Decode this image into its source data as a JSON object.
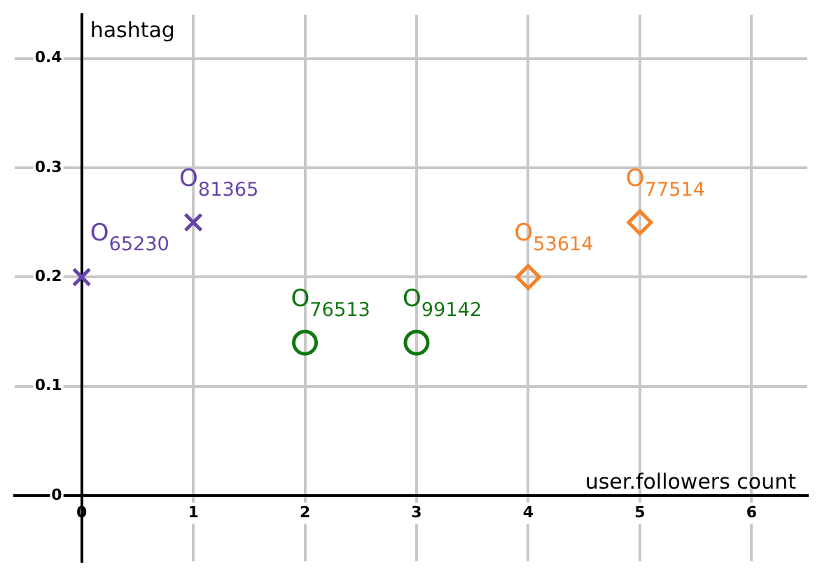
{
  "chart_data": {
    "type": "scatter",
    "xlabel": "user.followers count",
    "ylabel": "hashtag",
    "xlim": [
      -0.6,
      6.5
    ],
    "ylim": [
      -0.06,
      0.44
    ],
    "xticks": [
      0,
      1,
      2,
      3,
      4,
      5,
      6
    ],
    "yticks": [
      0,
      0.1,
      0.2,
      0.3,
      0.4
    ],
    "grid": true,
    "series": [
      {
        "color": "#6644aa",
        "marker": "cross",
        "x": [
          0,
          1
        ],
        "values": [
          0.2,
          0.25
        ]
      },
      {
        "color": "#117711",
        "marker": "circle",
        "x": [
          2,
          3
        ],
        "values": [
          0.14,
          0.14
        ]
      },
      {
        "color": "#f5822a",
        "marker": "diamond",
        "x": [
          4,
          5
        ],
        "values": [
          0.2,
          0.25
        ]
      }
    ],
    "annotations": [
      {
        "text": "O$_{65230}$",
        "x": 0,
        "y": 0.2
      },
      {
        "text": "O$_{81365}$",
        "x": 1,
        "y": 0.25
      },
      {
        "text": "O$_{76513}$",
        "x": 2,
        "y": 0.14
      },
      {
        "text": "O$_{99142}$",
        "x": 3,
        "y": 0.14
      },
      {
        "text": "O$_{53614}$",
        "x": 4,
        "y": 0.2
      },
      {
        "text": "O$_{77514}$",
        "x": 5,
        "y": 0.25
      }
    ]
  }
}
